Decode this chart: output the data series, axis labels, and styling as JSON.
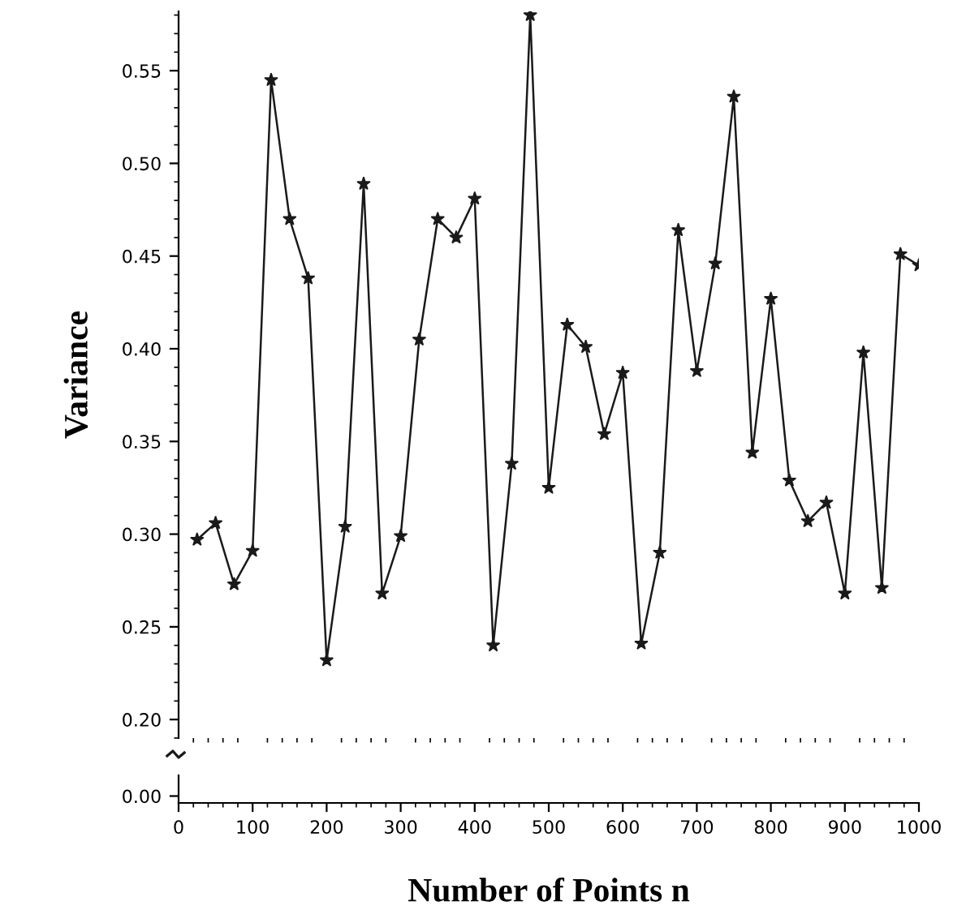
{
  "chart_data": {
    "type": "line",
    "xlabel": "Number of Points n",
    "ylabel": "Variance",
    "marker": "star",
    "line_style": "solid",
    "grid": false,
    "legend": false,
    "x": [
      25,
      50,
      75,
      100,
      125,
      150,
      175,
      200,
      225,
      250,
      275,
      300,
      325,
      350,
      375,
      400,
      425,
      450,
      475,
      500,
      525,
      550,
      575,
      600,
      625,
      650,
      675,
      700,
      725,
      750,
      775,
      800,
      825,
      850,
      875,
      900,
      925,
      950,
      975,
      1000
    ],
    "series": [
      {
        "color": "#1a1a1a",
        "values": [
          0.297,
          0.306,
          0.273,
          0.291,
          0.545,
          0.47,
          0.438,
          0.232,
          0.304,
          0.489,
          0.268,
          0.299,
          0.405,
          0.47,
          0.46,
          0.481,
          0.24,
          0.338,
          0.58,
          0.325,
          0.413,
          0.401,
          0.354,
          0.387,
          0.241,
          0.29,
          0.464,
          0.388,
          0.446,
          0.536,
          0.344,
          0.427,
          0.329,
          0.307,
          0.317,
          0.268,
          0.398,
          0.271,
          0.451,
          0.445
        ]
      }
    ],
    "xlim": [
      0,
      1000
    ],
    "ylim": [
      0.19,
      0.582
    ],
    "xticks": [
      0,
      100,
      200,
      300,
      400,
      500,
      600,
      700,
      800,
      900,
      1000
    ],
    "yticks": [
      {
        "value": 0.2,
        "label": "0.20"
      },
      {
        "value": 0.25,
        "label": "0.25"
      },
      {
        "value": 0.3,
        "label": "0.30"
      },
      {
        "value": 0.35,
        "label": "0.35"
      },
      {
        "value": 0.4,
        "label": "0.40"
      },
      {
        "value": 0.45,
        "label": "0.45"
      },
      {
        "value": 0.5,
        "label": "0.50"
      },
      {
        "value": 0.55,
        "label": "0.55"
      }
    ],
    "annotations": [
      "0.00"
    ]
  }
}
